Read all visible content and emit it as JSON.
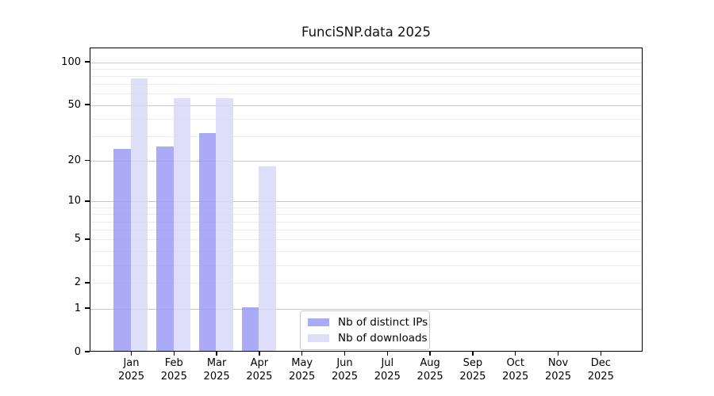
{
  "figure": {
    "background": "#ffffff"
  },
  "chart_data": {
    "type": "bar",
    "title": "FunciSNP.data 2025",
    "scale": "log1p",
    "grid": true,
    "legend_position": "inside-bottom-center",
    "x": {
      "months": [
        "Jan",
        "Feb",
        "Mar",
        "Apr",
        "May",
        "Jun",
        "Jul",
        "Aug",
        "Sep",
        "Oct",
        "Nov",
        "Dec"
      ],
      "year": "2025"
    },
    "series": [
      {
        "name": "Nb of distinct IPs",
        "color": "#9b9bf4",
        "values": [
          24,
          25,
          31,
          1,
          0,
          0,
          0,
          0,
          0,
          0,
          0,
          0
        ]
      },
      {
        "name": "Nb of downloads",
        "color": "#d8d8f8",
        "values": [
          76,
          55,
          55,
          18,
          0,
          0,
          0,
          0,
          0,
          0,
          0,
          0
        ]
      }
    ],
    "y_axis": {
      "tick_labels": [
        0,
        1,
        2,
        5,
        10,
        20,
        50,
        100
      ],
      "strong_gridlines": [
        1,
        10,
        20,
        50,
        100
      ],
      "faint_gridlines": [
        2,
        5,
        3,
        4,
        6,
        7,
        8,
        9,
        30,
        40,
        60,
        70,
        80,
        90
      ],
      "ylim_top_value": 125
    },
    "colors": {
      "axis": "#000000",
      "strong_grid": "#c9c9c9",
      "faint_grid": "#ebebeb",
      "text": "#000000",
      "background": "#ffffff"
    },
    "bar_opacity": 0.85
  }
}
